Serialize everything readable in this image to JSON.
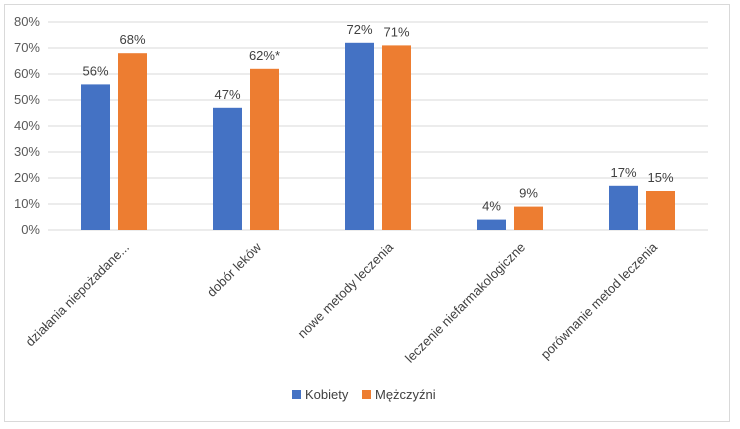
{
  "chart_data": {
    "type": "bar",
    "categories": [
      "działania niepożadane...",
      "dobór leków",
      "nowe metody leczenia",
      "leczenie niefarmakologiczne",
      "porównanie metod leczenia"
    ],
    "series": [
      {
        "name": "Kobiety",
        "color": "#4472c4",
        "values": [
          56,
          47,
          72,
          4,
          17
        ],
        "labels": [
          "56%",
          "47%",
          "72%",
          "4%",
          "17%"
        ]
      },
      {
        "name": "Mężczyźni",
        "color": "#ed7d31",
        "values": [
          68,
          62,
          71,
          9,
          15
        ],
        "labels": [
          "68%",
          "62%*",
          "71%",
          "9%",
          "15%"
        ]
      }
    ],
    "ylim": [
      0,
      80
    ],
    "yticks": [
      "0%",
      "10%",
      "20%",
      "30%",
      "40%",
      "50%",
      "60%",
      "70%",
      "80%"
    ],
    "grid": true,
    "legend": "bottom",
    "gridColor": "#d9d9d9"
  }
}
